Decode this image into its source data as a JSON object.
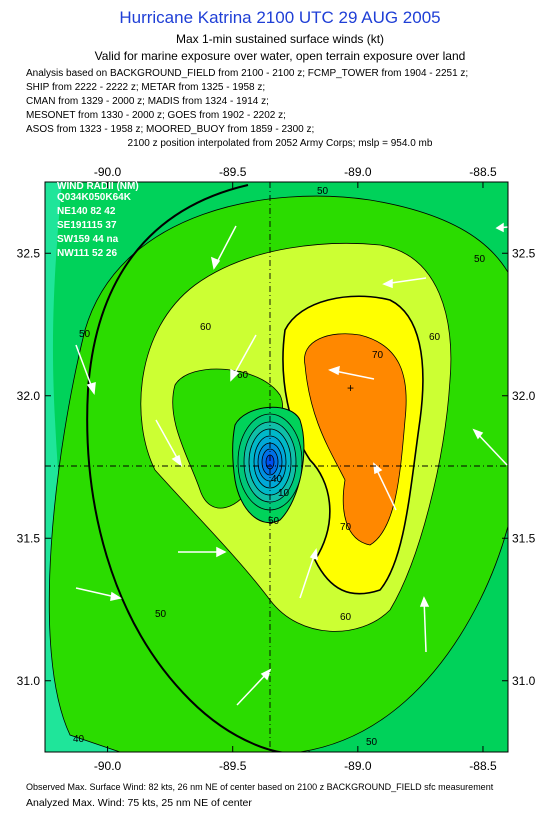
{
  "header": {
    "title": "Hurricane Katrina 2100 UTC 29 AUG 2005",
    "subtitle": "Max 1-min sustained surface winds (kt)",
    "validity": "Valid for marine exposure over water, open terrain exposure over land",
    "analysis_lines": [
      "Analysis based on  BACKGROUND_FIELD from 2100 - 2100 z;  FCMP_TOWER from 1904 - 2251 z;",
      "SHIP from 2222 - 2222 z;  METAR from 1325 - 1958 z;",
      "CMAN from 1329 - 2000 z;  MADIS from 1324 - 1914 z;",
      "MESONET from 1330 - 2000 z;  GOES from 1902 - 2202 z;",
      "ASOS from 1323 - 1958 z;  MOORED_BUOY from 1859 - 2300 z;"
    ],
    "position_note": "2100 z position interpolated from 2052 Army Corps; mslp = 954.0 mb"
  },
  "map": {
    "lon_ticks": [
      "-90.0",
      "-89.5",
      "-89.0",
      "-88.5"
    ],
    "lon_values": [
      -90.0,
      -89.5,
      -89.0,
      -88.5
    ],
    "lat_ticks": [
      "32.5",
      "32.0",
      "31.5",
      "31.0"
    ],
    "lat_values": [
      32.5,
      32.0,
      31.5,
      31.0
    ],
    "lon_range": [
      -90.25,
      -88.4
    ],
    "lat_range": [
      30.75,
      32.75
    ],
    "center": {
      "lon": -89.32,
      "lat": 31.76
    },
    "max_wind_marker": {
      "lon": -88.98,
      "lat": 32.03
    },
    "wind_radii_title": "WIND RADII (NM)",
    "wind_radii_rows": [
      "Q034K050K64K",
      "NE140 82 42",
      "SE191115 37",
      "SW159 44 na",
      "NW111 52 26"
    ],
    "contour_labels": [
      "50",
      "60",
      "70",
      "60",
      "50",
      "40",
      "60",
      "50",
      "70",
      "60",
      "50",
      "50",
      "40",
      "10",
      "50"
    ],
    "colors": {
      "band_30_40": "#1fe59a",
      "band_40_50": "#00d25a",
      "band_50_60": "#2bdc00",
      "band_60_65": "#ccff33",
      "band_65_70": "#ffff00",
      "band_70_80": "#ff8800",
      "eye": "#00b8c8"
    }
  },
  "footer": {
    "observed": "Observed Max. Surface Wind: 82 kts, 26 nm NE of center based on 2100 z BACKGROUND_FIELD sfc measurement",
    "analyzed": "Analyzed Max. Wind: 75 kts, 25 nm NE of center"
  }
}
